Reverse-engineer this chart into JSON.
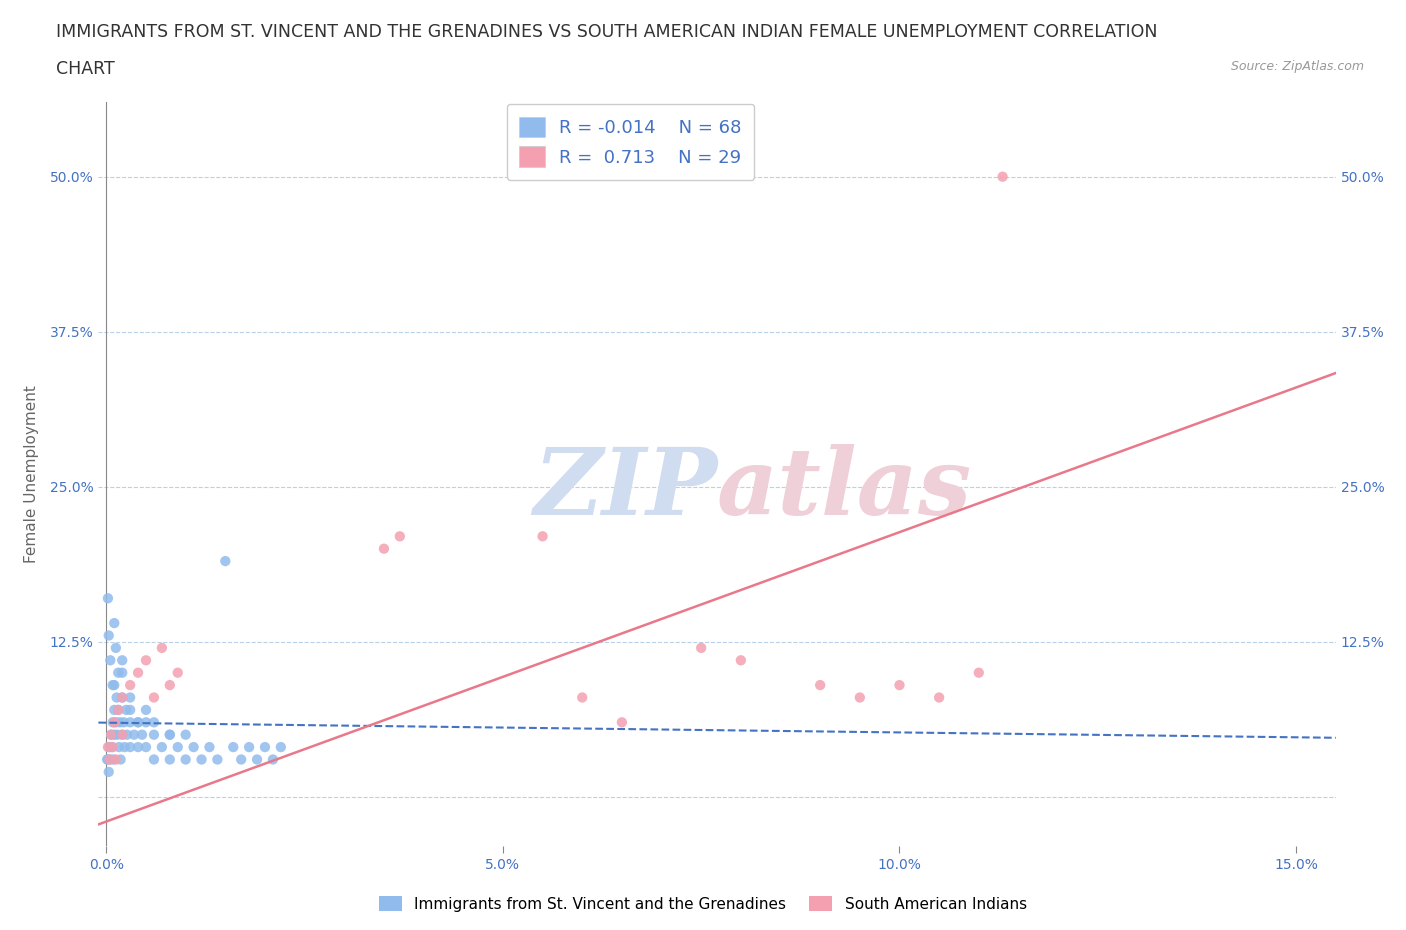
{
  "title_line1": "IMMIGRANTS FROM ST. VINCENT AND THE GRENADINES VS SOUTH AMERICAN INDIAN FEMALE UNEMPLOYMENT CORRELATION",
  "title_line2": "CHART",
  "source": "Source: ZipAtlas.com",
  "ylabel": "Female Unemployment",
  "xlim": [
    -0.001,
    0.155
  ],
  "ylim": [
    -0.04,
    0.56
  ],
  "xtick_vals": [
    0.0,
    0.05,
    0.1,
    0.15
  ],
  "xticklabels": [
    "0.0%",
    "5.0%",
    "10.0%",
    "15.0%"
  ],
  "ytick_vals": [
    0.0,
    0.125,
    0.25,
    0.375,
    0.5
  ],
  "yticklabels_left": [
    "",
    "12.5%",
    "25.0%",
    "37.5%",
    "50.0%"
  ],
  "yticklabels_right": [
    "",
    "12.5%",
    "25.0%",
    "37.5%",
    "50.0%"
  ],
  "color_blue": "#90BBEC",
  "color_pink": "#F4A0B0",
  "color_blue_line": "#4472C4",
  "color_pink_line": "#E8788A",
  "watermark_color": "#D0DCF0",
  "watermark_color2": "#F0D0D8",
  "blue_x": [
    0.0002,
    0.0003,
    0.0004,
    0.0005,
    0.0006,
    0.0007,
    0.0008,
    0.0009,
    0.001,
    0.001,
    0.001,
    0.0012,
    0.0013,
    0.0014,
    0.0015,
    0.0016,
    0.0017,
    0.0018,
    0.002,
    0.002,
    0.002,
    0.0022,
    0.0023,
    0.0025,
    0.0026,
    0.003,
    0.003,
    0.003,
    0.0035,
    0.004,
    0.004,
    0.0045,
    0.005,
    0.005,
    0.006,
    0.006,
    0.007,
    0.008,
    0.008,
    0.009,
    0.01,
    0.01,
    0.011,
    0.012,
    0.013,
    0.014,
    0.015,
    0.016,
    0.017,
    0.018,
    0.019,
    0.02,
    0.021,
    0.022,
    0.0001,
    0.0002,
    0.0003,
    0.0005,
    0.0008,
    0.001,
    0.0012,
    0.0015,
    0.002,
    0.003,
    0.004,
    0.005,
    0.006,
    0.008
  ],
  "blue_y": [
    0.03,
    0.02,
    0.04,
    0.03,
    0.05,
    0.04,
    0.06,
    0.03,
    0.05,
    0.07,
    0.09,
    0.06,
    0.08,
    0.05,
    0.07,
    0.04,
    0.06,
    0.03,
    0.05,
    0.08,
    0.1,
    0.06,
    0.04,
    0.07,
    0.05,
    0.06,
    0.04,
    0.08,
    0.05,
    0.06,
    0.04,
    0.05,
    0.06,
    0.04,
    0.05,
    0.03,
    0.04,
    0.05,
    0.03,
    0.04,
    0.05,
    0.03,
    0.04,
    0.03,
    0.04,
    0.03,
    0.19,
    0.04,
    0.03,
    0.04,
    0.03,
    0.04,
    0.03,
    0.04,
    0.03,
    0.16,
    0.13,
    0.11,
    0.09,
    0.14,
    0.12,
    0.1,
    0.11,
    0.07,
    0.06,
    0.07,
    0.06,
    0.05
  ],
  "pink_x": [
    0.0002,
    0.0004,
    0.0006,
    0.0008,
    0.001,
    0.0012,
    0.0015,
    0.002,
    0.002,
    0.003,
    0.004,
    0.005,
    0.006,
    0.007,
    0.008,
    0.009,
    0.035,
    0.037,
    0.055,
    0.06,
    0.065,
    0.075,
    0.08,
    0.09,
    0.095,
    0.1,
    0.105,
    0.11,
    0.113
  ],
  "pink_y": [
    0.04,
    0.03,
    0.05,
    0.04,
    0.06,
    0.03,
    0.07,
    0.05,
    0.08,
    0.09,
    0.1,
    0.11,
    0.08,
    0.12,
    0.09,
    0.1,
    0.2,
    0.21,
    0.21,
    0.08,
    0.06,
    0.12,
    0.11,
    0.09,
    0.08,
    0.09,
    0.08,
    0.1,
    0.5
  ]
}
